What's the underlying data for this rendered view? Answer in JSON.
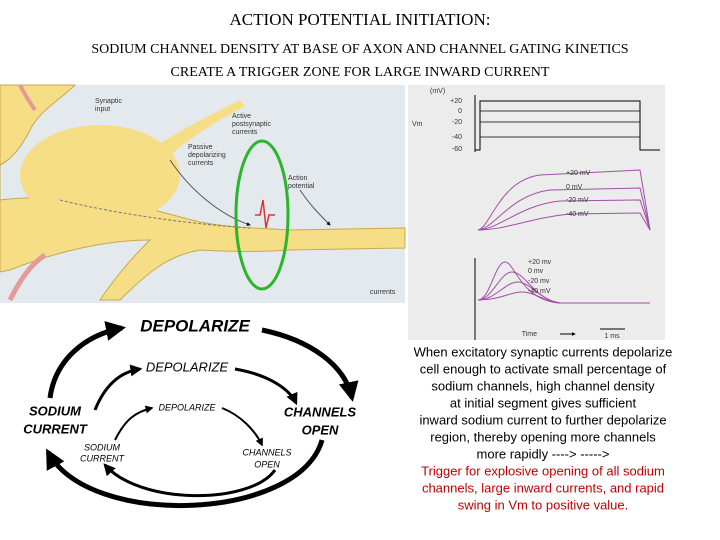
{
  "title": "ACTION POTENTIAL INITIATION:",
  "subtitle": [
    "SODIUM CHANNEL DENSITY AT BASE OF AXON AND CHANNEL GATING KINETICS",
    "CREATE A TRIGGER ZONE FOR LARGE INWARD CURRENT"
  ],
  "neuron_labels": {
    "synaptic_input": [
      "Synaptic",
      "input"
    ],
    "active_postsynaptic": [
      "Active",
      "postsynaptic",
      "currents"
    ],
    "passive_depolarizing": [
      "Passive",
      "depolarizing",
      "currents"
    ],
    "action_potential": [
      "Action",
      "potential"
    ],
    "currents": "currents"
  },
  "graph_labels": {
    "unit": "(mV)",
    "axis_ticks": [
      "+20",
      "0",
      "-20",
      "-40",
      "-60"
    ],
    "vm": "Vm",
    "upper_traces": [
      "+20 mV",
      "0 mV",
      "-20 mV",
      "-40 mV"
    ],
    "lower_traces": [
      "+20 mv",
      "0 mv",
      "-20 mv",
      "-40 mV"
    ],
    "time": "Time",
    "scale": "1 ms"
  },
  "cycle": {
    "large": {
      "depolarize": "DEPOLARIZE",
      "sodium_current": [
        "SODIUM",
        "CURRENT"
      ],
      "channels_open": [
        "CHANNELS",
        "OPEN"
      ]
    },
    "medium": {
      "depolarize": "DEPOLARIZE"
    },
    "small": {
      "depolarize": "DEPOLARIZE",
      "sodium_current": [
        "SODIUM",
        "CURRENT"
      ],
      "channels_open": [
        "CHANNELS",
        "OPEN"
      ]
    }
  },
  "description": {
    "black": [
      "When excitatory synaptic currents depolarize",
      "cell enough to activate small percentage of",
      "sodium channels, high channel density",
      "at initial segment gives sufficient",
      "inward sodium current to further depolarize",
      "region, thereby opening more channels",
      "more rapidly ----> ----->"
    ],
    "red": [
      "Trigger for explosive opening of all sodium",
      "channels, large inward currents, and rapid",
      "swing in Vm to positive value."
    ]
  }
}
